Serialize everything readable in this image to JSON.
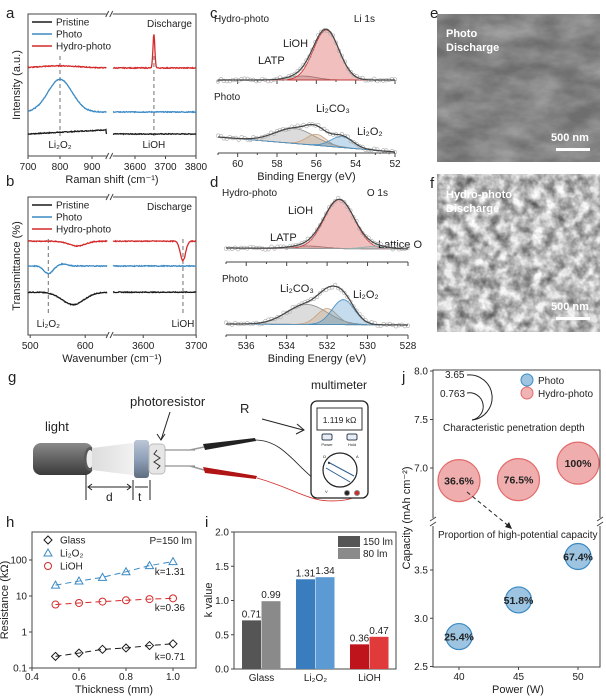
{
  "panel_labels": {
    "a": "a",
    "b": "b",
    "c": "c",
    "d": "d",
    "e": "e",
    "f": "f",
    "g": "g",
    "h": "h",
    "i": "i",
    "j": "j"
  },
  "colors": {
    "pristine": "#1a1a1a",
    "photo": "#3b8ac4",
    "hydro": "#d42a2a",
    "gray": "#8c8c8c",
    "li2co3": "#c8a07a",
    "lattice": "#8fb0b0"
  },
  "chart_data": [
    {
      "panel": "a",
      "type": "line",
      "xlabel": "Raman shift (cm⁻¹)",
      "ylabel": "Intensity (a.u.)",
      "xticks": [
        "700",
        "800",
        "900",
        "3600",
        "3700",
        "3800"
      ],
      "x_break": [
        945,
        3528
      ],
      "legend": [
        "Pristine",
        "Photo",
        "Hydro-photo"
      ],
      "legend_placement": "top-left",
      "condition": "Discharge",
      "annotations": [
        {
          "text": "Li₂O₂",
          "x": 800
        },
        {
          "text": "LiOH",
          "x": 3662
        }
      ],
      "series": [
        {
          "name": "Pristine",
          "color": "#1a1a1a",
          "offset": 1.55,
          "slope": 0.0012,
          "peaks": []
        },
        {
          "name": "Photo",
          "color": "#3b8ac4",
          "offset": 3.1,
          "slope": 0,
          "peaks": [
            {
              "x": 800,
              "height": 2.3,
              "sigma": 38
            }
          ]
        },
        {
          "name": "Hydro-photo",
          "color": "#d42a2a",
          "offset": 6.2,
          "slope": 0,
          "peaks": [
            {
              "x": 800,
              "height": 0.15,
              "sigma": 60
            },
            {
              "x": 3662,
              "height": 2.4,
              "sigma": 3
            }
          ]
        }
      ]
    },
    {
      "panel": "b",
      "type": "line",
      "xlabel": "Wavenumber (cm⁻¹)",
      "ylabel": "Transmittance (%)",
      "xticks": [
        "500",
        "600",
        "3600",
        "3700"
      ],
      "x_break": [
        640,
        3543
      ],
      "legend": [
        "Pristine",
        "Photo",
        "Hydro-photo"
      ],
      "legend_placement": "top-left",
      "condition": "Discharge",
      "annotations": [
        {
          "text": "Li₂O₂",
          "x": 533
        },
        {
          "text": "LiOH",
          "x": 3675
        }
      ],
      "series": [
        {
          "name": "Pristine",
          "color": "#1a1a1a",
          "offset": 3.1,
          "peaks": [
            {
              "x": 578,
              "height": -0.9,
              "sigma": 20
            }
          ]
        },
        {
          "name": "Photo",
          "color": "#3b8ac4",
          "offset": 5.0,
          "peaks": [
            {
              "x": 533,
              "height": -0.55,
              "sigma": 8
            },
            {
              "x": 560,
              "height": 0.15,
              "sigma": 8
            }
          ]
        },
        {
          "name": "Hydro-photo",
          "color": "#d42a2a",
          "offset": 6.8,
          "peaks": [
            {
              "x": 585,
              "height": -0.35,
              "sigma": 15
            },
            {
              "x": 3675,
              "height": -1.4,
              "sigma": 5
            }
          ]
        }
      ]
    },
    {
      "panel": "c",
      "type": "line",
      "xlabel": "Binding Energy (eV)",
      "xticks": [
        "60",
        "58",
        "56",
        "54",
        "52"
      ],
      "xlim": [
        61,
        52
      ],
      "core_level": "Li 1s",
      "spectra": [
        {
          "name": "Hydro-photo",
          "background": [
            7.3,
            7.3
          ],
          "components": [
            {
              "label": "LATP",
              "center": 56.7,
              "height": 0.4,
              "sigma": 0.7,
              "color": "#8c8c8c"
            },
            {
              "label": "LiOH",
              "center": 55.5,
              "height": 5.0,
              "sigma": 0.65,
              "color": "#d42a2a"
            }
          ]
        },
        {
          "name": "Photo",
          "background": [
            1.6,
            0.1
          ],
          "components": [
            {
              "label": "",
              "center": 57.1,
              "height": 1.5,
              "sigma": 1.0,
              "color": "#8c8c8c"
            },
            {
              "label": "Li₂CO₃",
              "center": 56.0,
              "height": 1.1,
              "sigma": 0.5,
              "color": "#c8a07a"
            },
            {
              "label": "Li₂O₂",
              "center": 54.7,
              "height": 1.1,
              "sigma": 0.55,
              "color": "#3b8ac4"
            }
          ]
        }
      ]
    },
    {
      "panel": "d",
      "type": "line",
      "xlabel": "Binding Energy (eV)",
      "xticks": [
        "536",
        "534",
        "532",
        "530",
        "528"
      ],
      "xlim": [
        537,
        528
      ],
      "core_level": "O 1s",
      "spectra": [
        {
          "name": "Hydro-photo",
          "background": [
            8.7,
            8.6
          ],
          "components": [
            {
              "label": "LATP",
              "center": 533.0,
              "height": 0.25,
              "sigma": 0.8,
              "color": "#8c8c8c"
            },
            {
              "label": "LiOH",
              "center": 531.4,
              "height": 4.9,
              "sigma": 0.75,
              "color": "#d42a2a"
            },
            {
              "label": "Lattice O",
              "center": 529.6,
              "height": 0.25,
              "sigma": 0.6,
              "color": "#8fb0b0"
            }
          ]
        },
        {
          "name": "Photo",
          "background": [
            1.1,
            1.0
          ],
          "components": [
            {
              "label": "",
              "center": 533.0,
              "height": 2.0,
              "sigma": 1.0,
              "color": "#8c8c8c"
            },
            {
              "label": "Li₂CO₃",
              "center": 532.0,
              "height": 1.6,
              "sigma": 0.5,
              "color": "#c8a07a"
            },
            {
              "label": "Li₂O₂",
              "center": 531.2,
              "height": 2.5,
              "sigma": 0.55,
              "color": "#3b8ac4"
            }
          ]
        }
      ]
    },
    {
      "panel": "h",
      "type": "scatter",
      "xlabel": "Thickness (mm)",
      "ylabel": "Resistance (kΩ)",
      "yscale": "log",
      "xlim": [
        0.4,
        1.1
      ],
      "ylim": [
        0.1,
        500
      ],
      "xticks": [
        "0.4",
        "0.6",
        "0.8",
        "1.0"
      ],
      "yticks": [
        "0.1",
        "1",
        "10",
        "100"
      ],
      "note": "P=150 lm",
      "legend_placement": "top-left",
      "x": [
        0.5,
        0.6,
        0.7,
        0.8,
        0.9,
        1.0
      ],
      "series": [
        {
          "name": "Glass",
          "marker": "diamond",
          "color": "#1a1a1a",
          "values": [
            0.21,
            0.26,
            0.33,
            0.36,
            0.42,
            0.47
          ],
          "fit_label": "k=0.71"
        },
        {
          "name": "Li₂O₂",
          "marker": "triangle",
          "color": "#3b8ac4",
          "values": [
            20,
            26,
            33,
            47,
            70,
            90
          ],
          "fit_label": "k=1.31"
        },
        {
          "name": "LiOH",
          "marker": "circle",
          "color": "#d42a2a",
          "values": [
            5.8,
            6.4,
            7.0,
            7.6,
            8.2,
            8.6
          ],
          "fit_label": "k=0.36"
        }
      ]
    },
    {
      "panel": "i",
      "type": "bar",
      "ylabel": "k value",
      "ylim": [
        0,
        2.0
      ],
      "yticks": [
        "0.0",
        "0.5",
        "1.0",
        "1.5",
        "2.0"
      ],
      "categories": [
        "Glass",
        "Li₂O₂",
        "LiOH"
      ],
      "legend_placement": "top-right",
      "series": [
        {
          "name": "150 lm",
          "values": [
            0.71,
            1.31,
            0.36
          ],
          "colors": [
            "#555555",
            "#3a7dbf",
            "#c0141c"
          ]
        },
        {
          "name": "80 lm",
          "values": [
            0.99,
            1.34,
            0.47
          ],
          "colors": [
            "#8a8a8a",
            "#5b9ad3",
            "#e03a3a"
          ]
        }
      ],
      "label_colors": [
        "#7a7a7a",
        "#3b7fc0",
        "#e03a3a"
      ]
    },
    {
      "panel": "j",
      "type": "scatter",
      "xlabel": "Power (W)",
      "ylabel": "Capacity (mAh cm⁻²)",
      "xticks": [
        "40",
        "45",
        "50"
      ],
      "yticks_upper": [
        "7.0",
        "7.5",
        "8.0"
      ],
      "yticks_lower": [
        "2.5",
        "3.0",
        "3.5"
      ],
      "y_break": [
        3.98,
        6.45
      ],
      "legend_placement": "top-right",
      "series": [
        {
          "name": "Photo",
          "color": "#3b8ac4",
          "x": [
            40,
            45,
            50
          ],
          "values": [
            2.81,
            3.19,
            3.64
          ],
          "labels": [
            "25.4%",
            "51.8%",
            "67.4%"
          ]
        },
        {
          "name": "Hydro-photo",
          "color": "#e36a6a",
          "x": [
            40,
            45,
            50
          ],
          "values": [
            6.87,
            6.88,
            7.05
          ],
          "labels": [
            "36.6%",
            "76.5%",
            "100%"
          ]
        }
      ],
      "annotations": {
        "depth_outer": "3.65",
        "depth_inner": "0.763",
        "depth_caption": "Characteristic penetration depth",
        "proportion_caption": "Proportion of high-potential capacity"
      }
    }
  ],
  "sem": {
    "e": {
      "line1": "Photo",
      "line2": "Discharge",
      "scale": "500 nm"
    },
    "f": {
      "line1": "Hydro-photo",
      "line2": "Discharge",
      "scale": "500 nm"
    }
  },
  "schematic": {
    "light": "light",
    "photoresistor": "photoresistor",
    "R": "R",
    "multimeter": "multimeter",
    "display": "1.119 kΩ",
    "power": "Power",
    "hold": "Hold",
    "ohm": "Ω",
    "amp": "A",
    "volt": "V",
    "d": "d",
    "t": "t"
  }
}
